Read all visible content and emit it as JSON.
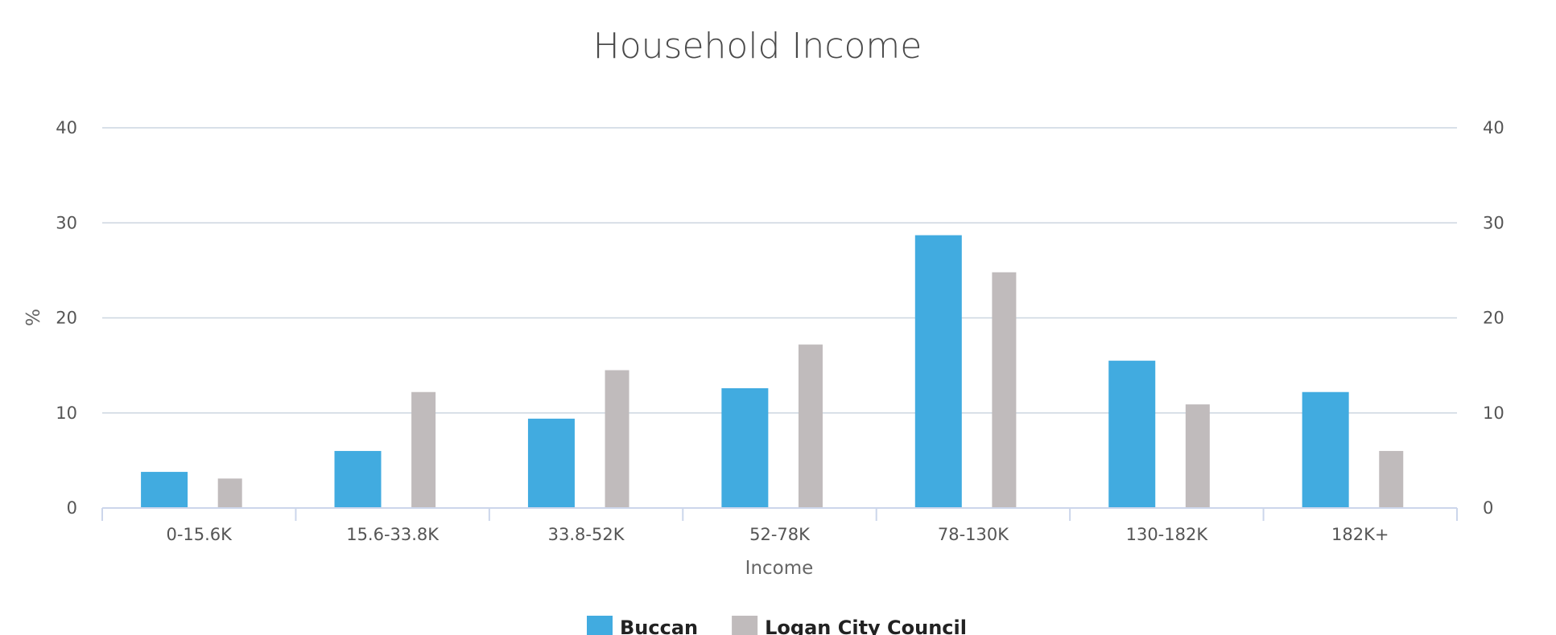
{
  "chart_data": {
    "type": "bar",
    "title": "Household Income",
    "xlabel": "Income",
    "ylabel": "%",
    "ylim": [
      0,
      40
    ],
    "yticks": [
      0,
      10,
      20,
      30,
      40
    ],
    "y2ticks": [
      0,
      10,
      20,
      30,
      40
    ],
    "grid": true,
    "legend_position": "bottom",
    "categories": [
      "0-15.6K",
      "15.6-33.8K",
      "33.8-52K",
      "52-78K",
      "78-130K",
      "130-182K",
      "182K+"
    ],
    "series": [
      {
        "name": "Buccan",
        "color": "#41abe0",
        "values": [
          3.8,
          6.0,
          9.4,
          12.6,
          28.7,
          15.5,
          12.2
        ]
      },
      {
        "name": "Logan City Council",
        "color": "#c0bbbc",
        "values": [
          3.1,
          12.2,
          14.5,
          17.2,
          24.8,
          10.9,
          6.0
        ]
      }
    ]
  }
}
